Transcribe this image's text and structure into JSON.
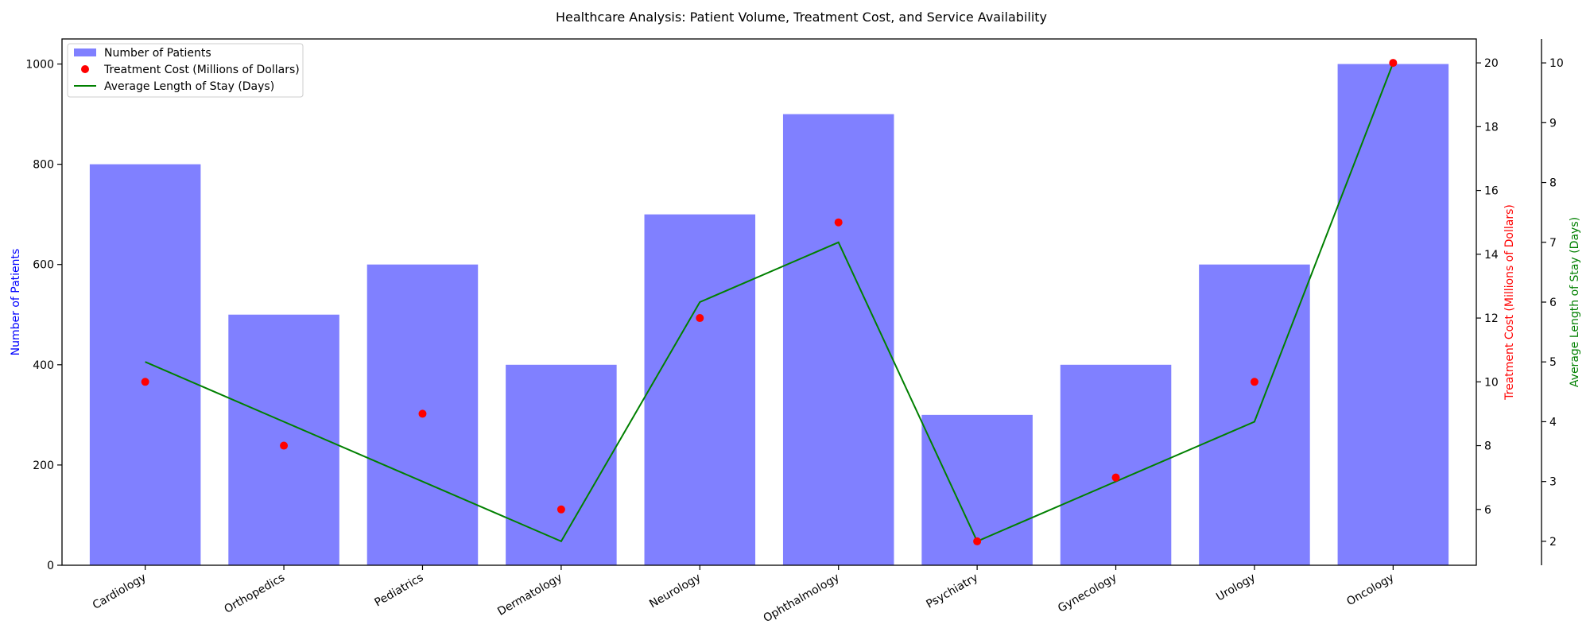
{
  "chart_data": {
    "type": "bar",
    "title": "Healthcare Analysis: Patient Volume, Treatment Cost, and Service Availability",
    "categories": [
      "Cardiology",
      "Orthopedics",
      "Pediatrics",
      "Dermatology",
      "Neurology",
      "Ophthalmology",
      "Psychiatry",
      "Gynecology",
      "Urology",
      "Oncology"
    ],
    "series": [
      {
        "name": "Number of Patients",
        "type": "bar",
        "axis": "left",
        "color": "#8080ff",
        "values": [
          800,
          500,
          600,
          400,
          700,
          900,
          300,
          400,
          600,
          1000
        ]
      },
      {
        "name": "Treatment Cost (Millions of Dollars)",
        "type": "scatter",
        "axis": "right",
        "color": "#ff0000",
        "values": [
          10,
          8,
          9,
          6,
          12,
          15,
          5,
          7,
          10,
          20
        ]
      },
      {
        "name": "Average Length of Stay (Days)",
        "type": "line",
        "axis": "right2",
        "color": "#008000",
        "values": [
          5,
          4,
          3,
          2,
          6,
          7,
          2,
          3,
          4,
          10
        ]
      }
    ],
    "axes": {
      "left": {
        "label": "Number of Patients",
        "color": "#0000ff",
        "range": [
          0,
          1050
        ],
        "ticks": [
          0,
          200,
          400,
          600,
          800,
          1000
        ]
      },
      "right": {
        "label": "Treatment Cost (Millions of Dollars)",
        "color": "#ff0000",
        "range": [
          4.25,
          20.75
        ],
        "ticks": [
          6,
          8,
          10,
          12,
          14,
          16,
          18,
          20
        ]
      },
      "right2": {
        "label": "Average Length of Stay (Days)",
        "color": "#008000",
        "range": [
          1.6,
          10.4
        ],
        "ticks": [
          2,
          3,
          4,
          5,
          6,
          7,
          8,
          9,
          10
        ]
      }
    },
    "legend": "top-left",
    "grid": false
  }
}
